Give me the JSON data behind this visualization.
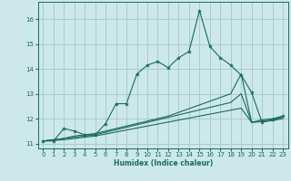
{
  "xlabel": "Humidex (Indice chaleur)",
  "xlim": [
    -0.5,
    23.5
  ],
  "ylim": [
    10.8,
    16.7
  ],
  "yticks": [
    11,
    12,
    13,
    14,
    15,
    16
  ],
  "xticks": [
    0,
    1,
    2,
    3,
    4,
    5,
    6,
    7,
    8,
    9,
    10,
    11,
    12,
    13,
    14,
    15,
    16,
    17,
    18,
    19,
    20,
    21,
    22,
    23
  ],
  "bg_color": "#cce8e8",
  "grid_color": "#aacccc",
  "line_color": "#1a6b5a",
  "line1_x": [
    0,
    1,
    2,
    3,
    4,
    5,
    6,
    7,
    8,
    9,
    10,
    11,
    12,
    13,
    14,
    15,
    16,
    17,
    18,
    19,
    20,
    21,
    22,
    23
  ],
  "line1_y": [
    11.1,
    11.1,
    11.6,
    11.5,
    11.35,
    11.35,
    11.8,
    12.6,
    12.6,
    13.8,
    14.15,
    14.3,
    14.05,
    14.45,
    14.7,
    16.35,
    14.9,
    14.45,
    14.15,
    13.75,
    13.05,
    11.85,
    11.95,
    12.1
  ],
  "line2_x": [
    0,
    1,
    2,
    3,
    4,
    5,
    6,
    7,
    8,
    9,
    10,
    11,
    12,
    13,
    14,
    15,
    16,
    17,
    18,
    19,
    20,
    21,
    22,
    23
  ],
  "line2_y": [
    11.1,
    11.15,
    11.2,
    11.3,
    11.35,
    11.4,
    11.5,
    11.6,
    11.7,
    11.8,
    11.9,
    12.0,
    12.1,
    12.25,
    12.4,
    12.55,
    12.7,
    12.85,
    13.0,
    13.8,
    11.85,
    11.95,
    12.0,
    12.1
  ],
  "line3_x": [
    0,
    1,
    2,
    3,
    4,
    5,
    6,
    7,
    8,
    9,
    10,
    11,
    12,
    13,
    14,
    15,
    16,
    17,
    18,
    19,
    20,
    21,
    22,
    23
  ],
  "line3_y": [
    11.1,
    11.15,
    11.2,
    11.25,
    11.3,
    11.35,
    11.45,
    11.55,
    11.65,
    11.75,
    11.85,
    11.95,
    12.05,
    12.15,
    12.25,
    12.35,
    12.45,
    12.55,
    12.65,
    13.0,
    11.85,
    11.9,
    11.95,
    12.05
  ],
  "line4_x": [
    0,
    1,
    2,
    3,
    4,
    5,
    6,
    7,
    8,
    9,
    10,
    11,
    12,
    13,
    14,
    15,
    16,
    17,
    18,
    19,
    20,
    21,
    22,
    23
  ],
  "line4_y": [
    11.1,
    11.12,
    11.15,
    11.2,
    11.25,
    11.3,
    11.38,
    11.46,
    11.54,
    11.62,
    11.7,
    11.78,
    11.86,
    11.94,
    12.02,
    12.1,
    12.18,
    12.26,
    12.34,
    12.42,
    11.85,
    11.88,
    11.92,
    12.0
  ]
}
